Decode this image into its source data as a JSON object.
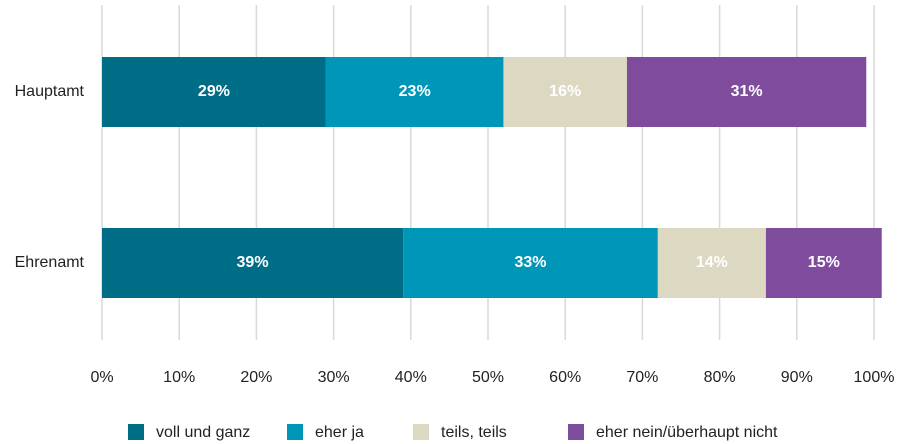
{
  "chart_data": {
    "type": "stacked_barh",
    "categories": [
      "Hauptamt",
      "Ehrenamt"
    ],
    "series": [
      {
        "name": "voll und ganz",
        "color": "#006d87",
        "values": [
          29,
          39
        ],
        "value_labels": [
          "29%",
          "39%"
        ]
      },
      {
        "name": "eher ja",
        "color": "#0096b8",
        "values": [
          23,
          33
        ],
        "value_labels": [
          "23%",
          "33%"
        ]
      },
      {
        "name": "teils, teils",
        "color": "#dcd8c2",
        "values": [
          16,
          14
        ],
        "value_labels": [
          "16%",
          "14%"
        ]
      },
      {
        "name": "eher nein/überhaupt nicht",
        "color": "#7e4b9d",
        "values": [
          31,
          15
        ],
        "value_labels": [
          "31%",
          "15%"
        ]
      }
    ],
    "xlim": [
      0,
      100
    ],
    "xticks": [
      {
        "value": 0,
        "label": "0%"
      },
      {
        "value": 10,
        "label": "10%"
      },
      {
        "value": 20,
        "label": "20%"
      },
      {
        "value": 30,
        "label": "30%"
      },
      {
        "value": 40,
        "label": "40%"
      },
      {
        "value": 50,
        "label": "50%"
      },
      {
        "value": 60,
        "label": "60%"
      },
      {
        "value": 70,
        "label": "70%"
      },
      {
        "value": 80,
        "label": "80%"
      },
      {
        "value": 90,
        "label": "90%"
      },
      {
        "value": 100,
        "label": "100%"
      }
    ],
    "grid": true,
    "legend": "bottom"
  }
}
